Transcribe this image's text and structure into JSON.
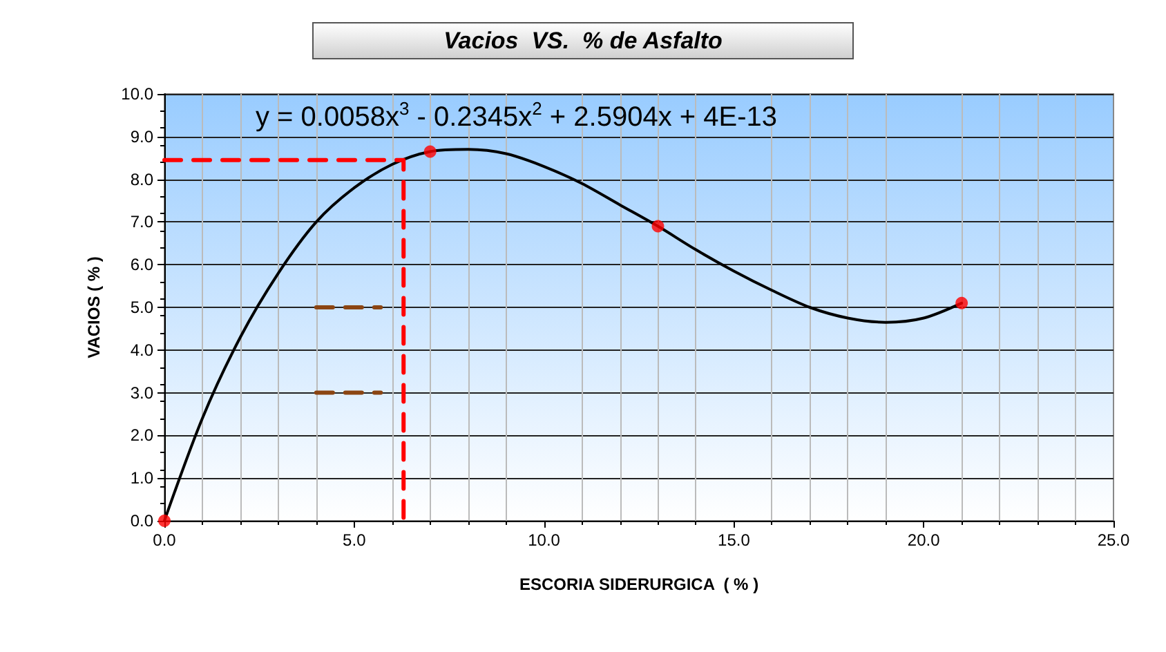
{
  "chart_data": {
    "type": "scatter",
    "title": "Vacios  VS.  % de Asfalto",
    "xlabel": "ESCORIA SIDERURGICA  ( % )",
    "ylabel": "VACIOS ( % )",
    "annotations": [
      "y = 0.0058x$^{3}$ - 0.2345x$^{2}$ + 2.5904x + 4E-13"
    ],
    "xlim": [
      0,
      25
    ],
    "ylim": [
      0,
      10
    ],
    "xticks": [
      {
        "value": 0,
        "label": "0.0"
      },
      {
        "value": 5,
        "label": "5.0"
      },
      {
        "value": 10,
        "label": "10.0"
      },
      {
        "value": 15,
        "label": "15.0"
      },
      {
        "value": 20,
        "label": "20.0"
      },
      {
        "value": 25,
        "label": "25.0"
      }
    ],
    "yticks": [
      {
        "value": 0,
        "label": "0.0"
      },
      {
        "value": 1,
        "label": "1.0"
      },
      {
        "value": 2,
        "label": "2.0"
      },
      {
        "value": 3,
        "label": "3.0"
      },
      {
        "value": 4,
        "label": "4.0"
      },
      {
        "value": 5,
        "label": "5.0"
      },
      {
        "value": 6,
        "label": "6.0"
      },
      {
        "value": 7,
        "label": "7.0"
      },
      {
        "value": 8,
        "label": "8.0"
      },
      {
        "value": 9,
        "label": "9.0"
      },
      {
        "value": 10,
        "label": "10.0"
      }
    ],
    "grid": true,
    "marker": "circle",
    "series": [
      {
        "type": "line",
        "color": "#000000",
        "line_style": "solid",
        "marker": "none",
        "x": [
          0,
          1,
          2,
          3,
          4,
          5,
          6,
          7,
          8,
          9,
          10,
          11,
          12,
          13,
          14,
          15,
          16,
          17,
          18,
          19,
          20,
          21
        ],
        "values": [
          0,
          2.4,
          4.3,
          5.8,
          7.0,
          7.8,
          8.35,
          8.65,
          8.7,
          8.6,
          8.3,
          7.9,
          7.4,
          6.9,
          6.35,
          5.85,
          5.4,
          5.0,
          4.75,
          4.65,
          4.75,
          5.1
        ]
      },
      {
        "type": "line",
        "color": "#ff0000",
        "line_style": "dashed",
        "marker": "none",
        "x": [
          0,
          6.3,
          6.3
        ],
        "values": [
          8.45,
          8.45,
          0
        ]
      },
      {
        "type": "line",
        "color": "#8b4513",
        "line_style": "dashed",
        "marker": "none",
        "x": [
          4,
          5.7
        ],
        "values": [
          5,
          5
        ]
      },
      {
        "type": "line",
        "color": "#8b4513",
        "line_style": "dashed",
        "marker": "none",
        "x": [
          4,
          5.7
        ],
        "values": [
          3,
          3
        ]
      },
      {
        "color": "#ff0000",
        "x": [
          0,
          7,
          13,
          21
        ],
        "values": [
          0,
          8.65,
          6.9,
          5.1
        ]
      }
    ]
  }
}
